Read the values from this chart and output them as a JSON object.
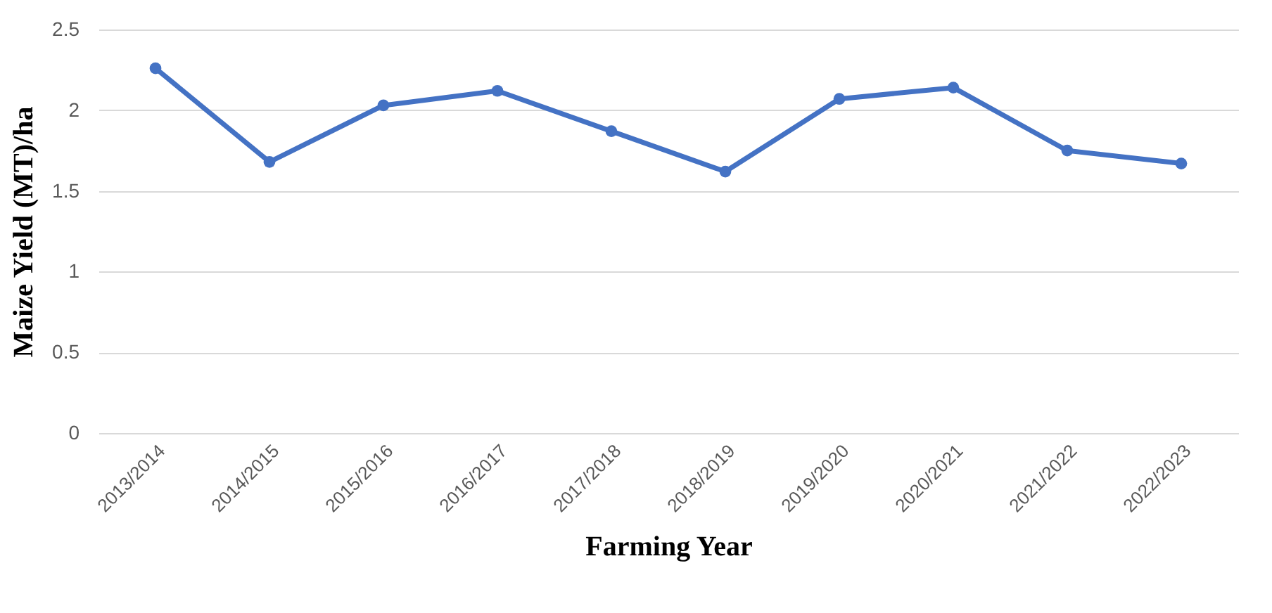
{
  "chart_data": {
    "type": "line",
    "xlabel": "Farming Year",
    "ylabel": "Maize Yield (MT)/ha",
    "categories": [
      "2013/2014",
      "2014/2015",
      "2015/2016",
      "2016/2017",
      "2017/2018",
      "2018/2019",
      "2019/2020",
      "2020/2021",
      "2021/2022",
      "2022/2023"
    ],
    "series": [
      {
        "color": "#4472c4",
        "values": [
          2.26,
          1.68,
          2.03,
          2.12,
          1.87,
          1.62,
          2.07,
          2.14,
          1.75,
          1.67
        ]
      }
    ],
    "ylim": [
      0,
      2.5
    ],
    "yticks": [
      0,
      0.5,
      1,
      1.5,
      2,
      2.5
    ],
    "grid": "y",
    "marker": "circle",
    "line_style": "solid"
  }
}
